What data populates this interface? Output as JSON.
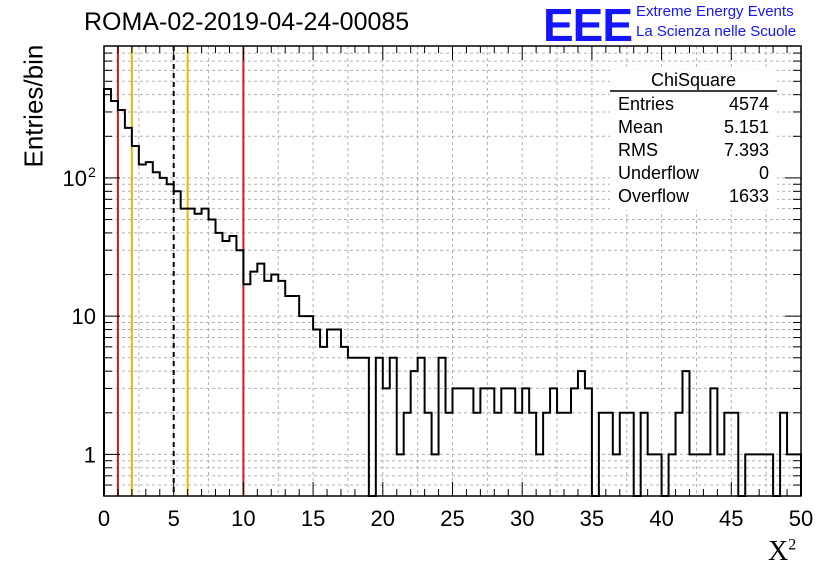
{
  "title": "ROMA-02-2019-04-24-00085",
  "logo": {
    "text": "EEE",
    "line1": "Extreme Energy Events",
    "line2": "La Scienza nelle Scuole",
    "color": "#1515ff"
  },
  "stats_box": {
    "title": "ChiSquare",
    "rows": [
      {
        "label": "Entries",
        "value": "4574"
      },
      {
        "label": "Mean",
        "value": "5.151"
      },
      {
        "label": "RMS",
        "value": "7.393"
      },
      {
        "label": "Underflow",
        "value": "0"
      },
      {
        "label": "Overflow",
        "value": "1633"
      }
    ]
  },
  "chart_data": {
    "type": "histogram",
    "title": "ROMA-02-2019-04-24-00085",
    "xlabel": "X",
    "xlabel_superscript": "2",
    "ylabel": "Entries/bin",
    "xlim": [
      0,
      50
    ],
    "ylim": [
      0.5,
      900
    ],
    "y_log_scale": true,
    "grid": true,
    "bin_width": 0.5,
    "x_ticks": [
      "0",
      "5",
      "10",
      "15",
      "20",
      "25",
      "30",
      "35",
      "40",
      "45",
      "50"
    ],
    "y_ticks": [
      {
        "value": 1,
        "label": "1"
      },
      {
        "value": 10,
        "label": "10"
      },
      {
        "value": 100,
        "label": "10",
        "sup": "2"
      }
    ],
    "bin_contents": [
      440,
      360,
      310,
      230,
      170,
      125,
      130,
      110,
      100,
      90,
      80,
      60,
      60,
      55,
      60,
      50,
      40,
      35,
      38,
      30,
      17,
      21,
      24,
      18,
      20,
      18,
      14,
      14,
      10,
      10,
      8,
      6,
      8,
      8,
      6,
      5,
      5,
      5,
      0,
      5,
      3,
      5,
      1,
      2,
      4,
      5,
      2,
      1,
      5,
      2,
      3,
      3,
      3,
      2,
      3,
      3,
      2,
      3,
      3,
      2,
      3,
      2,
      1,
      2,
      3,
      2,
      2,
      3,
      4,
      3,
      0,
      2,
      2,
      1,
      2,
      2,
      0,
      2,
      1,
      1,
      0,
      1,
      2,
      4,
      1,
      1,
      1,
      3,
      1,
      2,
      2,
      0,
      1,
      1,
      1,
      1,
      0,
      2,
      1,
      1
    ],
    "vertical_lines": [
      {
        "x": 1,
        "color": "#d61a1a",
        "style": "solid"
      },
      {
        "x": 2,
        "color": "#f0b400",
        "style": "solid"
      },
      {
        "x": 5,
        "color": "#000000",
        "style": "dashed"
      },
      {
        "x": 6,
        "color": "#f0b400",
        "style": "solid"
      },
      {
        "x": 10,
        "color": "#d61a1a",
        "style": "solid"
      }
    ]
  }
}
